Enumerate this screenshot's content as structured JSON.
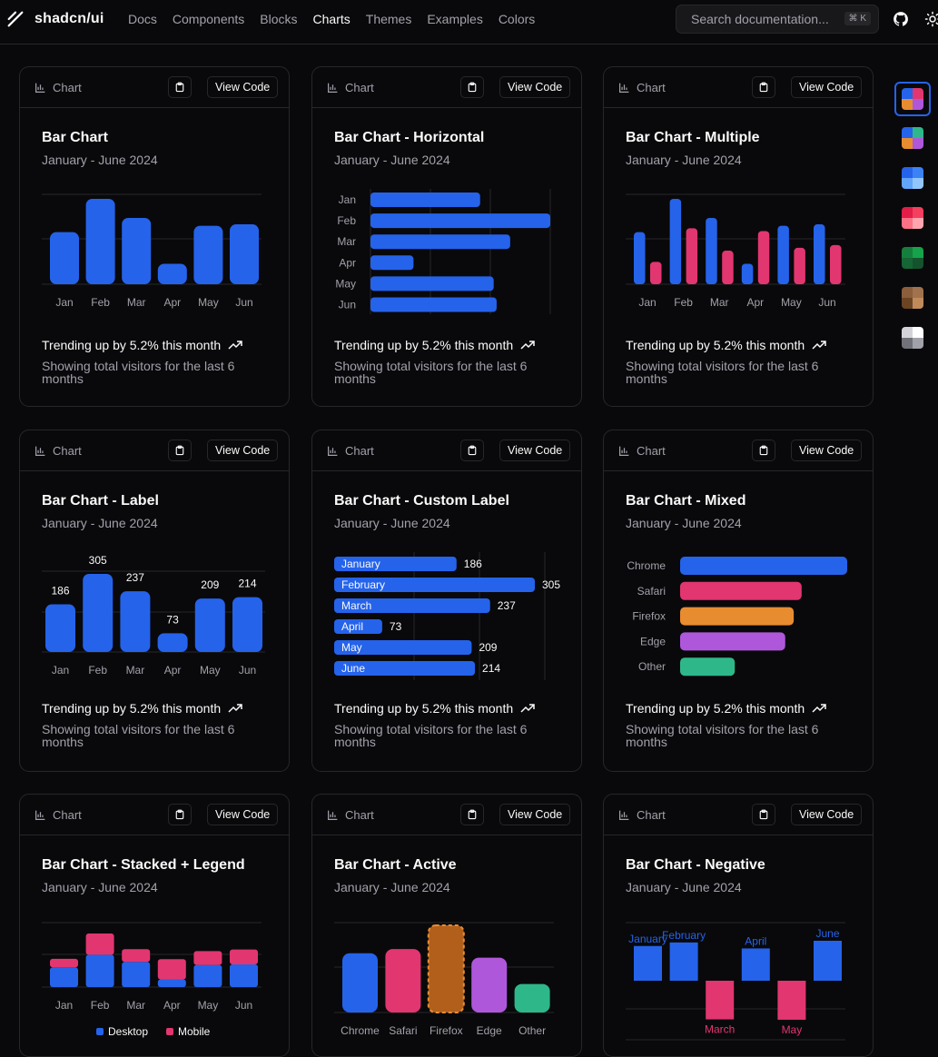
{
  "brand": {
    "name": "shadcn/ui"
  },
  "nav": [
    "Docs",
    "Components",
    "Blocks",
    "Charts",
    "Themes",
    "Examples",
    "Colors"
  ],
  "nav_active": "Charts",
  "search": {
    "placeholder": "Search documentation...",
    "shortcut": "⌘ K"
  },
  "card_common": {
    "tag": "Chart",
    "view_code": "View Code",
    "subtitle": "January - June 2024",
    "trend": "Trending up by 5.2% this month",
    "desc": "Showing total visitors for the last 6 months"
  },
  "cards": [
    {
      "title": "Bar Chart"
    },
    {
      "title": "Bar Chart - Horizontal"
    },
    {
      "title": "Bar Chart - Multiple"
    },
    {
      "title": "Bar Chart - Label"
    },
    {
      "title": "Bar Chart - Custom Label"
    },
    {
      "title": "Bar Chart - Mixed"
    },
    {
      "title": "Bar Chart - Stacked + Legend"
    },
    {
      "title": "Bar Chart - Active"
    },
    {
      "title": "Bar Chart - Negative"
    }
  ],
  "colors": {
    "blue": "#2563eb",
    "pink": "#e23670",
    "orange": "#e88c30",
    "purple": "#af57db",
    "green": "#2eb88a",
    "activeFill": "#b25f1c",
    "activeStroke": "#e88c30"
  },
  "chart_data": [
    {
      "type": "bar",
      "title": "Bar Chart",
      "categories": [
        "Jan",
        "Feb",
        "Mar",
        "Apr",
        "May",
        "Jun"
      ],
      "values": [
        186,
        305,
        237,
        73,
        209,
        214
      ]
    },
    {
      "type": "bar",
      "title": "Bar Chart - Horizontal",
      "orientation": "horizontal",
      "categories": [
        "Jan",
        "Feb",
        "Mar",
        "Apr",
        "May",
        "Jun"
      ],
      "values": [
        186,
        305,
        237,
        73,
        209,
        214
      ]
    },
    {
      "type": "bar",
      "title": "Bar Chart - Multiple",
      "categories": [
        "Jan",
        "Feb",
        "Mar",
        "Apr",
        "May",
        "Jun"
      ],
      "series": [
        {
          "values": [
            186,
            305,
            237,
            73,
            209,
            214
          ]
        },
        {
          "values": [
            80,
            200,
            120,
            190,
            130,
            140
          ]
        }
      ]
    },
    {
      "type": "bar",
      "title": "Bar Chart - Label",
      "categories": [
        "Jan",
        "Feb",
        "Mar",
        "Apr",
        "May",
        "Jun"
      ],
      "values": [
        186,
        305,
        237,
        73,
        209,
        214
      ]
    },
    {
      "type": "bar",
      "title": "Bar Chart - Custom Label",
      "orientation": "horizontal",
      "categories": [
        "January",
        "February",
        "March",
        "April",
        "May",
        "June"
      ],
      "values": [
        186,
        305,
        237,
        73,
        209,
        214
      ]
    },
    {
      "type": "bar",
      "title": "Bar Chart - Mixed",
      "orientation": "horizontal",
      "categories": [
        "Chrome",
        "Safari",
        "Firefox",
        "Edge",
        "Other"
      ],
      "values": [
        275,
        200,
        187,
        173,
        90
      ]
    },
    {
      "type": "bar",
      "title": "Bar Chart - Stacked + Legend",
      "stacked": true,
      "categories": [
        "Jan",
        "Feb",
        "Mar",
        "Apr",
        "May",
        "Jun"
      ],
      "series": [
        {
          "name": "Desktop",
          "values": [
            186,
            305,
            237,
            73,
            209,
            214
          ]
        },
        {
          "name": "Mobile",
          "values": [
            80,
            200,
            120,
            190,
            130,
            140
          ]
        }
      ],
      "legend": "bottom"
    },
    {
      "type": "bar",
      "title": "Bar Chart - Active",
      "categories": [
        "Chrome",
        "Safari",
        "Firefox",
        "Edge",
        "Other"
      ],
      "values": [
        187,
        200,
        275,
        173,
        90
      ],
      "active": "Firefox"
    },
    {
      "type": "bar",
      "title": "Bar Chart - Negative",
      "categories": [
        "January",
        "February",
        "March",
        "April",
        "May",
        "June"
      ],
      "values": [
        186,
        205,
        -207,
        173,
        -209,
        214
      ]
    }
  ],
  "themes": [
    {
      "colors": [
        "#2563eb",
        "#e23670",
        "#e88c30",
        "#af57db"
      ],
      "selected": true
    },
    {
      "colors": [
        "#2563eb",
        "#2eb88a",
        "#e88c30",
        "#af57db"
      ]
    },
    {
      "colors": [
        "#2563eb",
        "#3b82f6",
        "#60a5fa",
        "#93c5fd"
      ]
    },
    {
      "colors": [
        "#e11d48",
        "#f43f5e",
        "#fb7185",
        "#fda4af"
      ]
    },
    {
      "colors": [
        "#15803d",
        "#16a34a",
        "#166534",
        "#14532d"
      ]
    },
    {
      "colors": [
        "#8b5e3c",
        "#a0724d",
        "#6b4423",
        "#c08a5a"
      ]
    },
    {
      "colors": [
        "#d4d4d8",
        "#ffffff",
        "#71717a",
        "#a1a1aa"
      ]
    }
  ]
}
